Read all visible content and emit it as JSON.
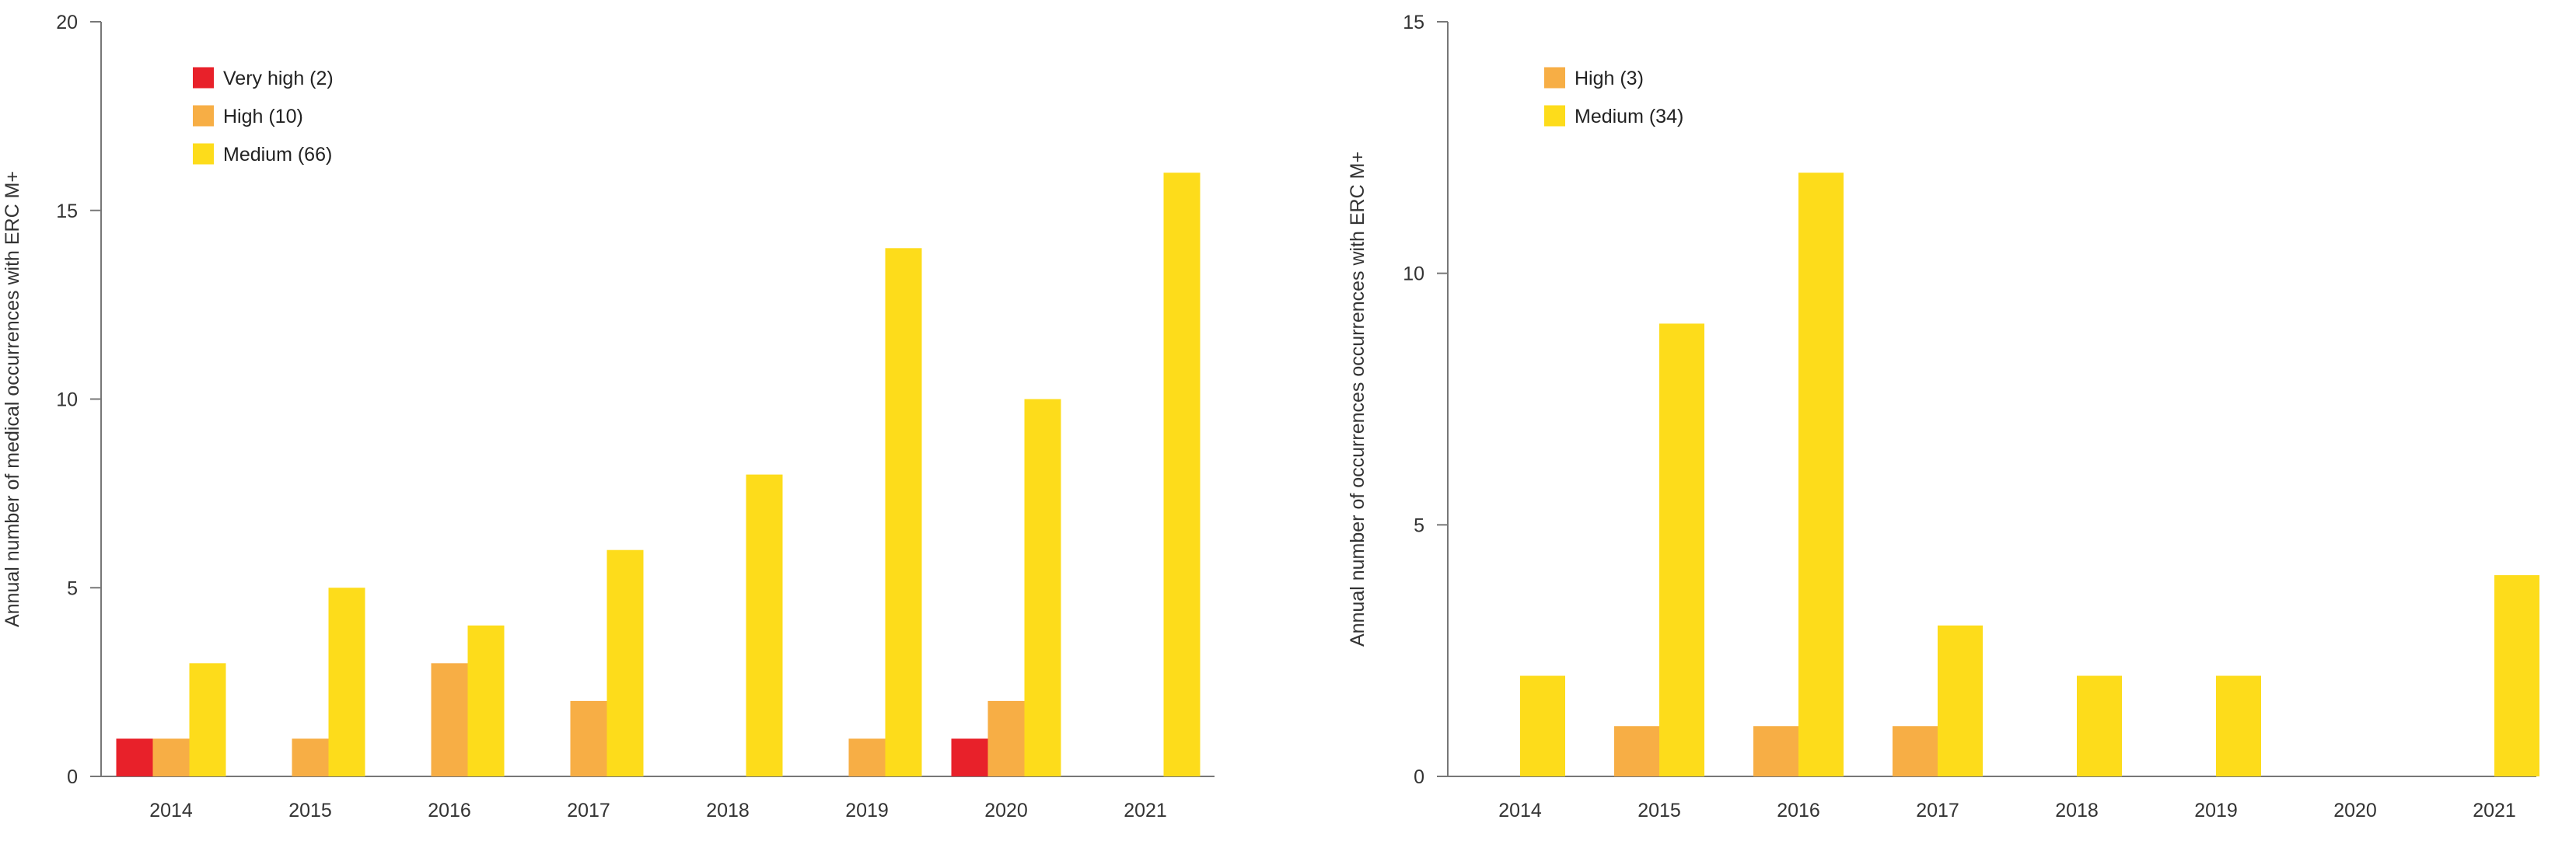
{
  "colors": {
    "very_high": "#E8212A",
    "high": "#F7AE45",
    "medium": "#FDDC1B"
  },
  "chart_data": [
    {
      "type": "bar",
      "categories": [
        "2014",
        "2015",
        "2016",
        "2017",
        "2018",
        "2019",
        "2020",
        "2021"
      ],
      "series": [
        {
          "name": "Very high (2)",
          "key": "very_high",
          "values": [
            1,
            0,
            0,
            0,
            0,
            0,
            1,
            0
          ]
        },
        {
          "name": "High (10)",
          "key": "high",
          "values": [
            1,
            1,
            3,
            2,
            0,
            1,
            2,
            0
          ]
        },
        {
          "name": "Medium (66)",
          "key": "medium",
          "values": [
            3,
            5,
            4,
            6,
            8,
            14,
            10,
            16
          ]
        }
      ],
      "xlabel": "",
      "ylabel": "Annual number of medical occurrences with ERC M+",
      "ylim": [
        0,
        20
      ],
      "yticks": [
        0,
        5,
        10,
        15,
        20
      ],
      "grid": false,
      "legend_position": "top-left"
    },
    {
      "type": "bar",
      "categories": [
        "2014",
        "2015",
        "2016",
        "2017",
        "2018",
        "2019",
        "2020",
        "2021"
      ],
      "series": [
        {
          "name": "High (3)",
          "key": "high",
          "values": [
            0,
            1,
            1,
            1,
            0,
            0,
            0,
            0
          ]
        },
        {
          "name": "Medium (34)",
          "key": "medium",
          "values": [
            2,
            9,
            12,
            3,
            2,
            2,
            0,
            4
          ]
        }
      ],
      "xlabel": "",
      "ylabel": "Annual number of occurrences occurrences with ERC M+",
      "ylim": [
        0,
        15
      ],
      "yticks": [
        0,
        5,
        10,
        15
      ],
      "grid": false,
      "legend_position": "top-left"
    }
  ]
}
